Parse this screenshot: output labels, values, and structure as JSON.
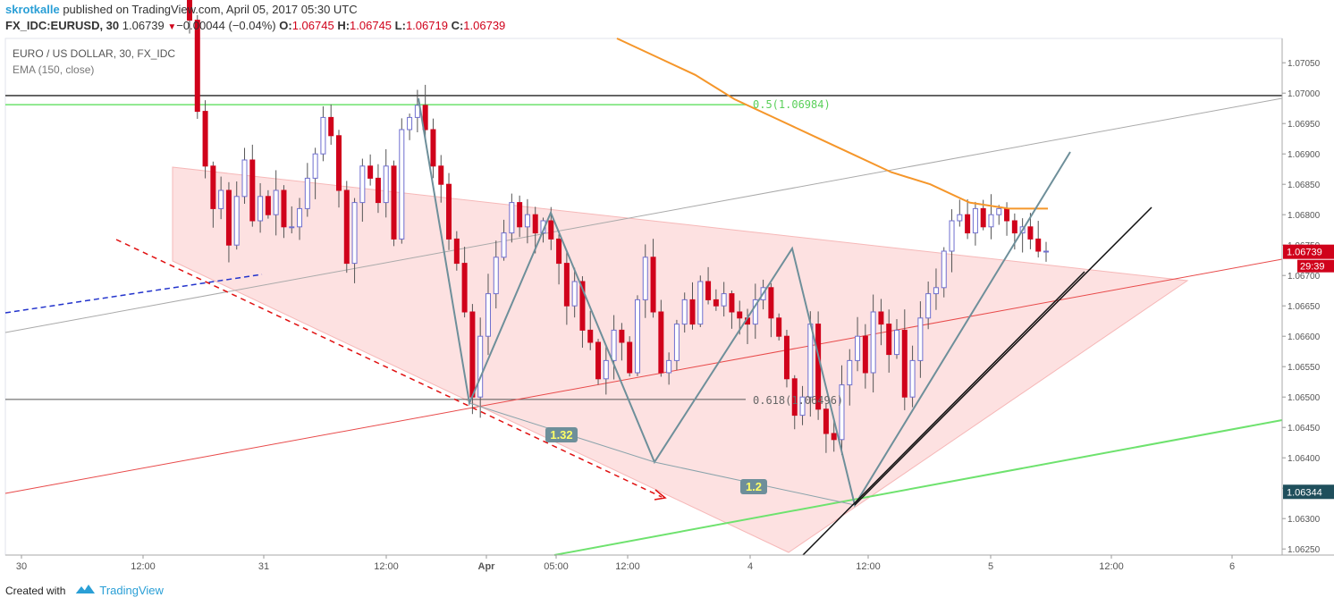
{
  "header": {
    "username": "skrotkalle",
    "published_text": "published on TradingView.com, April 05, 2017 05:30 UTC",
    "symbol": "FX_IDC:EURUSD, 30",
    "last": "1.06739",
    "arrow": "▼",
    "change": "−0.00044 (−0.04%)",
    "o_label": "O:",
    "o": "1.06745",
    "h_label": "H:",
    "h": "1.06745",
    "l_label": "L:",
    "l": "1.06719",
    "c_label": "C:",
    "c": "1.06739"
  },
  "legend": {
    "title": "EURO / US DOLLAR, 30, FX_IDC",
    "indicator": "EMA (150, close)"
  },
  "footer": {
    "created_with": "Created with",
    "brand": "TradingView"
  },
  "colors": {
    "up": "#6f6fcf",
    "down": "#d0021b",
    "ema": "#f5962a",
    "triangle": "#fcd7d7",
    "pattern": "#6e8f9a",
    "green": "#6ee26e"
  },
  "chart_data": {
    "type": "candlestick",
    "ylim": [
      1.0624,
      1.0709
    ],
    "y_ticks": [
      "1.07050",
      "1.07000",
      "1.06950",
      "1.06900",
      "1.06850",
      "1.06800",
      "1.06750",
      "1.06700",
      "1.06650",
      "1.06600",
      "1.06550",
      "1.06500",
      "1.06450",
      "1.06400",
      "1.06350",
      "1.06300",
      "1.06250"
    ],
    "x_ticks": [
      "30",
      "12:00",
      "31",
      "12:00",
      "Apr",
      "05:00",
      "12:00",
      "4",
      "12:00",
      "5",
      "12:00",
      "6"
    ],
    "price_labels": [
      {
        "value": "1.06739",
        "color": "#d0021b"
      },
      {
        "value": "29:39",
        "color": "#d0021b"
      },
      {
        "value": "1.06344",
        "color": "#1f4f5c"
      }
    ],
    "annotations": [
      {
        "text": "0.5(1.06984)",
        "color": "#5ad05a"
      },
      {
        "text": "0.618(1.06496)",
        "color": "#666666"
      },
      {
        "text": "1.32",
        "color": "#ffff66",
        "bg": "#6e8f9a"
      },
      {
        "text": "1.2",
        "color": "#ffff66",
        "bg": "#6e8f9a"
      }
    ],
    "ema_150": [
      1.0709,
      1.0706,
      1.0703,
      1.0699,
      1.0696,
      1.0693,
      1.069,
      1.0687,
      1.0685,
      1.0682,
      1.0681,
      1.0681
    ],
    "closes": [
      1.0712,
      1.0697,
      1.0688,
      1.0681,
      1.0684,
      1.0675,
      1.0683,
      1.0689,
      1.0679,
      1.0683,
      1.068,
      1.0684,
      1.0678,
      1.0678,
      1.0681,
      1.0686,
      1.069,
      1.0696,
      1.0693,
      1.0684,
      1.0672,
      1.0682,
      1.0688,
      1.0686,
      1.0682,
      1.0688,
      1.0676,
      1.0694,
      1.0696,
      1.0698,
      1.0694,
      1.0688,
      1.0685,
      1.0676,
      1.0672,
      1.0664,
      1.065,
      1.066,
      1.0667,
      1.0673,
      1.0677,
      1.0682,
      1.0678,
      1.068,
      1.0677,
      1.0679,
      1.0676,
      1.0672,
      1.0665,
      1.0669,
      1.0661,
      1.0659,
      1.0653,
      1.0656,
      1.0661,
      1.0659,
      1.0654,
      1.0666,
      1.0673,
      1.0664,
      1.0654,
      1.0656,
      1.0662,
      1.0666,
      1.0662,
      1.0669,
      1.0666,
      1.0665,
      1.0667,
      1.0664,
      1.0663,
      1.0662,
      1.0666,
      1.0668,
      1.0663,
      1.066,
      1.0653,
      1.0647,
      1.065,
      1.0662,
      1.0648,
      1.0644,
      1.0643,
      1.0652,
      1.0656,
      1.066,
      1.0654,
      1.0664,
      1.0662,
      1.0657,
      1.0661,
      1.065,
      1.0656,
      1.0663,
      1.0667,
      1.0668,
      1.0674,
      1.0679,
      1.068,
      1.0677,
      1.0681,
      1.0678,
      1.068,
      1.0681,
      1.0679,
      1.0677,
      1.0678,
      1.0676,
      1.0674,
      1.0674
    ]
  }
}
